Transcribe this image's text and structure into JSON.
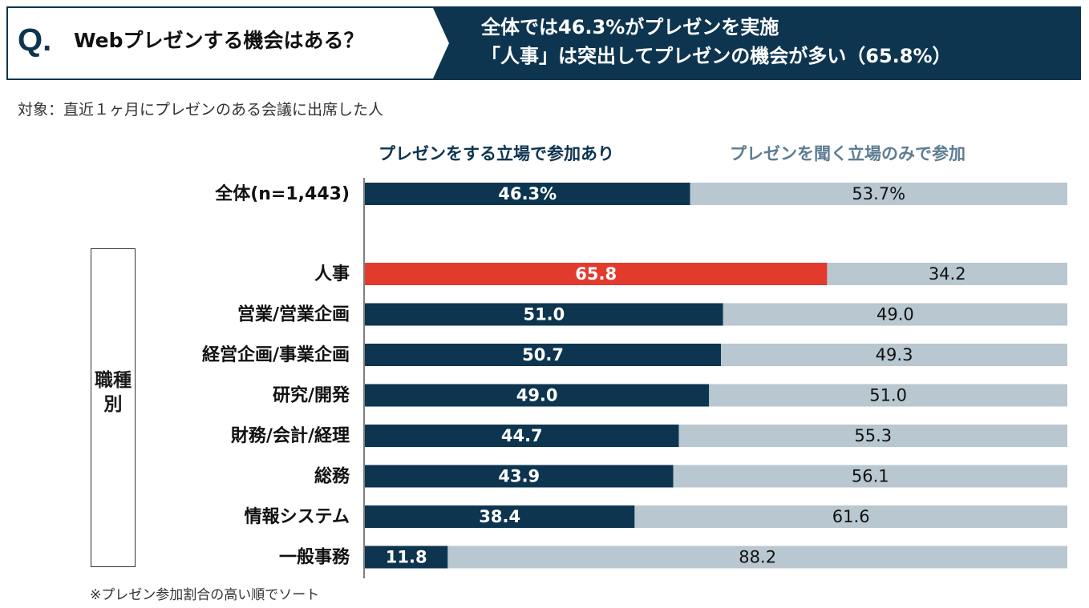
{
  "header": {
    "q_mark": "Q.",
    "question": "Webプレゼンする機会はある？",
    "headline_line1": "全体では46.3%がプレゼンを実施",
    "headline_line2": "「人事」は突出してプレゼンの機会が多い（65.8%）"
  },
  "subject": "対象：直近１ヶ月にプレゼンのある会議に出席した人",
  "category_label": "職種別",
  "footnote": "※プレゼン参加割合の高い順でソート",
  "colors": {
    "primary": "#0d3550",
    "highlight": "#e23b2e",
    "secondary": "#b8c7d0",
    "legend_secondary": "#5d7d93"
  },
  "chart_data": {
    "type": "bar",
    "orientation": "horizontal",
    "stacked": true,
    "percent": true,
    "xlim": [
      0,
      100
    ],
    "legend": [
      "プレゼンをする立場で参加あり",
      "プレゼンを聞く立場のみで参加"
    ],
    "total": {
      "label": "全体(n=1,443)",
      "values": [
        46.3,
        53.7
      ],
      "value_labels": [
        "46.3%",
        "53.7%"
      ]
    },
    "categories": [
      "人事",
      "営業/営業企画",
      "経営企画/事業企画",
      "研究/開発",
      "財務/会計/経理",
      "総務",
      "情報システム",
      "一般事務"
    ],
    "series": [
      {
        "name": "プレゼンをする立場で参加あり",
        "values": [
          65.8,
          51.0,
          50.7,
          49.0,
          44.7,
          43.9,
          38.4,
          11.8
        ],
        "value_labels": [
          "65.8",
          "51.0",
          "50.7",
          "49.0",
          "44.7",
          "43.9",
          "38.4",
          "11.8"
        ]
      },
      {
        "name": "プレゼンを聞く立場のみで参加",
        "values": [
          34.2,
          49.0,
          49.3,
          51.0,
          55.3,
          56.1,
          61.6,
          88.2
        ],
        "value_labels": [
          "34.2",
          "49.0",
          "49.3",
          "51.0",
          "55.3",
          "56.1",
          "61.6",
          "88.2"
        ]
      }
    ],
    "highlight_category": "人事"
  }
}
